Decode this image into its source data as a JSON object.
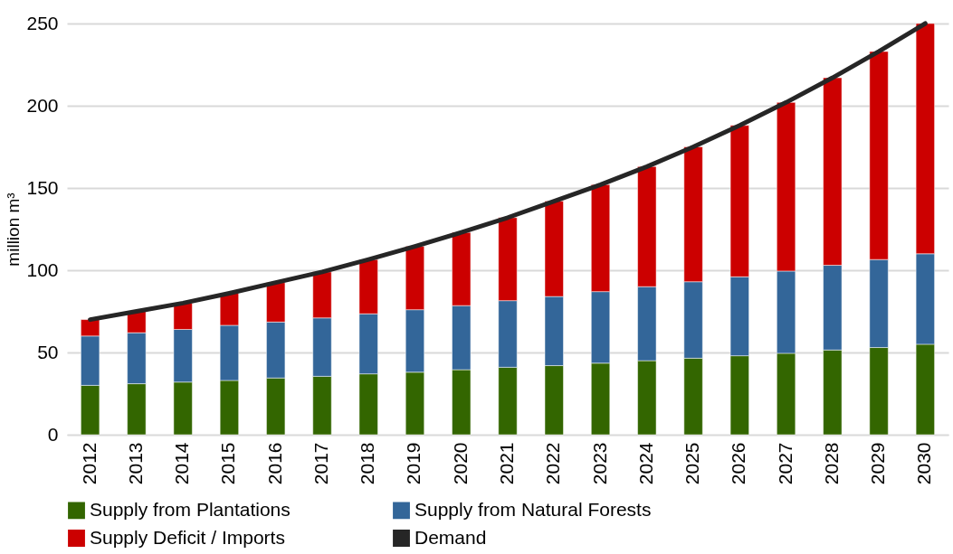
{
  "chart_data": {
    "type": "bar",
    "stacked": true,
    "ylabel": "million m³",
    "categories": [
      "2012",
      "2013",
      "2014",
      "2015",
      "2016",
      "2017",
      "2018",
      "2019",
      "2020",
      "2021",
      "2022",
      "2023",
      "2024",
      "2025",
      "2026",
      "2027",
      "2028",
      "2029",
      "2030"
    ],
    "series": [
      {
        "name": "Supply from Plantations",
        "color": "#336600",
        "values": [
          30,
          31,
          32,
          33,
          34.5,
          35.5,
          37,
          38,
          39.5,
          41,
          42,
          43.5,
          45,
          46.5,
          48,
          49.5,
          51.5,
          53,
          55
        ]
      },
      {
        "name": "Supply from Natural Forests",
        "color": "#336699",
        "values": [
          30,
          31,
          32,
          33.5,
          34,
          35.5,
          36.5,
          38,
          39,
          40.5,
          42,
          43.5,
          45,
          46.5,
          48,
          50,
          51.5,
          53.5,
          55
        ]
      },
      {
        "name": "Supply Deficit / Imports",
        "color": "#cc0000",
        "values": [
          10,
          13,
          16,
          19.5,
          24,
          28,
          33,
          38.5,
          44.5,
          50.5,
          58,
          65,
          73,
          82,
          92,
          102.5,
          114,
          126.5,
          140
        ]
      },
      {
        "name": "Demand",
        "type": "line",
        "color": "#262626",
        "values": [
          70,
          75,
          80,
          86,
          92.5,
          99,
          106.5,
          114.5,
          123,
          132,
          142,
          152,
          163,
          175,
          188,
          202,
          217,
          233,
          250
        ]
      }
    ],
    "ylim": [
      0,
      250
    ],
    "yticks": [
      0,
      50,
      100,
      150,
      200,
      250
    ],
    "grid": "y",
    "legend": "bottom"
  }
}
